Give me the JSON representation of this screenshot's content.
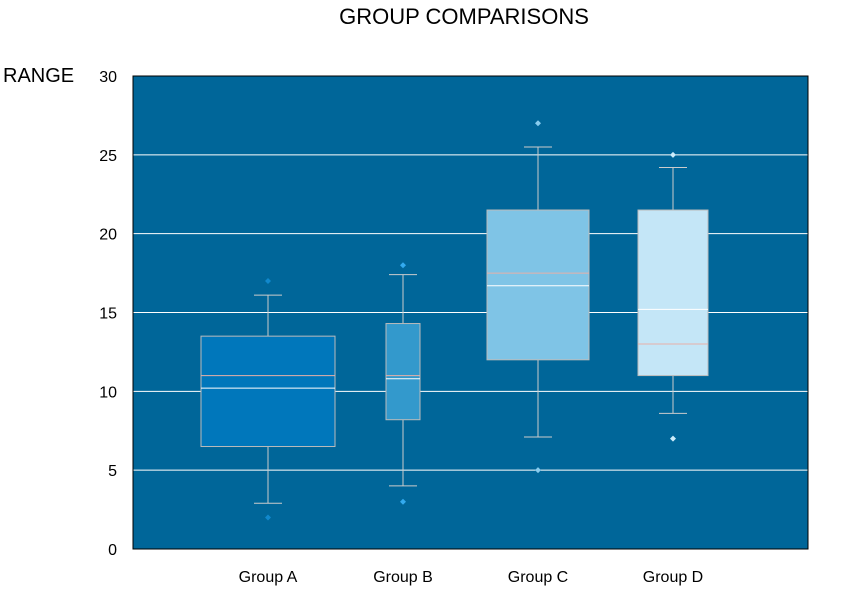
{
  "chart_data": {
    "type": "boxplot",
    "title": "GROUP COMPARISONS",
    "xlabel": "",
    "ylabel": "RANGE",
    "ylim": [
      0,
      30
    ],
    "yticks": [
      "0",
      "5",
      "10",
      "15",
      "20",
      "25",
      "30"
    ],
    "grid": true,
    "legend": "none",
    "plot_background": "#006699",
    "groups": [
      {
        "label": "Group A",
        "color": "#0077bb",
        "whisker_low": 2.9,
        "q1": 6.5,
        "mean": 10.2,
        "median": 11.0,
        "q3": 13.5,
        "whisker_high": 16.1,
        "outliers": [
          2.0,
          17.0
        ],
        "outlier_color": "#1188cc"
      },
      {
        "label": "Group B",
        "color": "#3399cc",
        "whisker_low": 4.0,
        "q1": 8.2,
        "mean": 10.8,
        "median": 11.0,
        "q3": 14.3,
        "whisker_high": 17.4,
        "outliers": [
          3.0,
          18.0
        ],
        "outlier_color": "#33aaee"
      },
      {
        "label": "Group C",
        "color": "#7fc4e6",
        "whisker_low": 7.1,
        "q1": 12.0,
        "mean": 16.7,
        "median": 17.5,
        "q3": 21.5,
        "whisker_high": 25.5,
        "outliers": [
          5.0,
          27.0
        ],
        "outlier_color": "#88ccee"
      },
      {
        "label": "Group D",
        "color": "#c4e6f7",
        "whisker_low": 8.6,
        "q1": 11.0,
        "mean": 15.2,
        "median": 13.0,
        "q3": 21.5,
        "whisker_high": 24.2,
        "outliers": [
          7.0,
          25.0
        ],
        "outlier_color": "#ccecfb"
      }
    ]
  }
}
